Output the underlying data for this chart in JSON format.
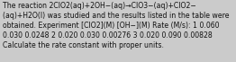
{
  "line1": "The reaction 2ClO2(aq)+2OH−(aq)→ClO3−(aq)+ClO2−",
  "line2": "(aq)+H2O(l) was studied and the results listed in the table were",
  "line3": "obtained. Experiment [ClO2](M) [OH−](M) Rate (M/s): 1 0.060",
  "line4": "0.030 0.0248 2 0.020 0.030 0.00276 3 0.020 0.090 0.00828",
  "line5": "Calculate the rate constant with proper units.",
  "background_color": "#cbcbcb",
  "text_color": "#111111",
  "font_size": 5.55,
  "linespacing": 1.3
}
